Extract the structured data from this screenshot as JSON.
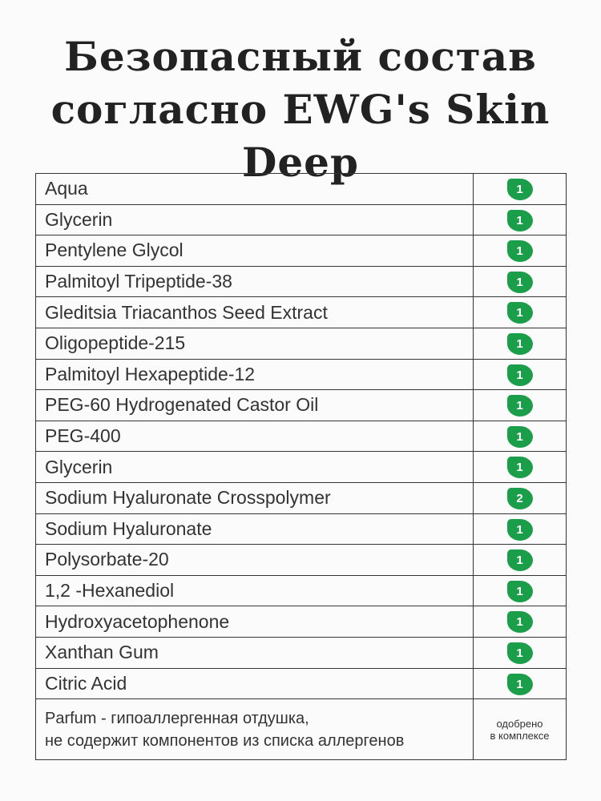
{
  "title": {
    "line1": "Безопасный состав",
    "line2": "согласно EWG's Skin Deep"
  },
  "badge_color": "#1a9e4a",
  "rows": [
    {
      "name": "Aqua",
      "score": "1"
    },
    {
      "name": "Glycerin",
      "score": "1"
    },
    {
      "name": "Pentylene Glycol",
      "score": "1"
    },
    {
      "name": "Palmitoyl Tripeptide-38",
      "score": "1"
    },
    {
      "name": "Gleditsia Triacanthos Seed Extract",
      "score": "1"
    },
    {
      "name": "Oligopeptide-215",
      "score": "1"
    },
    {
      "name": "Palmitoyl Hexapeptide-12",
      "score": "1"
    },
    {
      "name": "PEG-60 Hydrogenated Castor Oil",
      "score": "1"
    },
    {
      "name": "PEG-400",
      "score": "1"
    },
    {
      "name": "Glycerin",
      "score": "1"
    },
    {
      "name": "Sodium Hyaluronate Crosspolymer",
      "score": "2"
    },
    {
      "name": "Sodium Hyaluronate",
      "score": "1"
    },
    {
      "name": "Polysorbate-20",
      "score": "1"
    },
    {
      "name": "1,2 -Hexanediol",
      "score": "1"
    },
    {
      "name": "Hydroxyacetophenone",
      "score": "1"
    },
    {
      "name": "Xanthan Gum",
      "score": "1"
    },
    {
      "name": "Citric Acid",
      "score": "1"
    }
  ],
  "last": {
    "line1": "Parfum - гипоаллергенная отдушка,",
    "line2": "не содержит компонентов из списка аллергенов",
    "status1": "одобрено",
    "status2": "в комплексе"
  }
}
